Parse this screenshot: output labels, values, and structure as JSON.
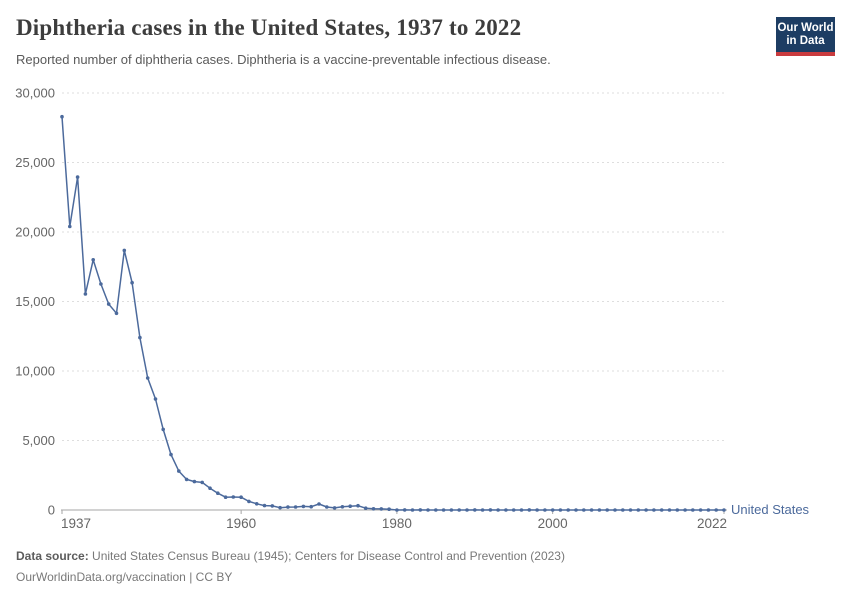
{
  "header": {
    "title": "Diphtheria cases in the United States, 1937 to 2022",
    "subtitle": "Reported number of diphtheria cases. Diphtheria is a vaccine-preventable infectious disease.",
    "logo": {
      "line1": "Our World",
      "line2": "in Data",
      "bg_color": "#1d3d63",
      "accent_color": "#c93b3e"
    }
  },
  "chart_data": {
    "type": "line",
    "title": "Diphtheria cases in the United States, 1937 to 2022",
    "xlabel": "",
    "ylabel": "",
    "xlim": [
      1937,
      2022
    ],
    "ylim": [
      0,
      30000
    ],
    "x_ticks": [
      1937,
      1960,
      1980,
      2000,
      2022
    ],
    "x_tick_labels": [
      "1937",
      "1960",
      "1980",
      "2000",
      "2022"
    ],
    "y_ticks": [
      0,
      5000,
      10000,
      15000,
      20000,
      25000,
      30000
    ],
    "y_tick_labels": [
      "0",
      "5,000",
      "10,000",
      "15,000",
      "20,000",
      "25,000",
      "30,000"
    ],
    "grid": "horizontal-dashed",
    "legend_position": "end-of-line",
    "end_label": "United States",
    "axis_color": "#a5a5a5",
    "grid_color": "#dedede",
    "series": [
      {
        "name": "United States",
        "color": "#4C6A9C",
        "x": [
          1937,
          1938,
          1939,
          1940,
          1941,
          1942,
          1943,
          1944,
          1945,
          1946,
          1947,
          1948,
          1949,
          1950,
          1951,
          1952,
          1953,
          1954,
          1955,
          1956,
          1957,
          1958,
          1959,
          1960,
          1961,
          1962,
          1963,
          1964,
          1965,
          1966,
          1967,
          1968,
          1969,
          1970,
          1971,
          1972,
          1973,
          1974,
          1975,
          1976,
          1977,
          1978,
          1979,
          1980,
          1981,
          1982,
          1983,
          1984,
          1985,
          1986,
          1987,
          1988,
          1989,
          1990,
          1991,
          1992,
          1993,
          1994,
          1995,
          1996,
          1997,
          1998,
          1999,
          2000,
          2001,
          2002,
          2003,
          2004,
          2005,
          2006,
          2007,
          2008,
          2009,
          2010,
          2011,
          2012,
          2013,
          2014,
          2015,
          2016,
          2017,
          2018,
          2019,
          2020,
          2021,
          2022
        ],
        "values": [
          28295,
          20394,
          23948,
          15536,
          18000,
          16260,
          14811,
          14150,
          18675,
          16354,
          12400,
          9493,
          7989,
          5796,
          3983,
          2800,
          2200,
          2041,
          1984,
          1568,
          1211,
          918,
          934,
          918,
          617,
          444,
          314,
          293,
          164,
          209,
          219,
          260,
          241,
          435,
          215,
          152,
          228,
          272,
          307,
          128,
          84,
          76,
          59,
          3,
          5,
          2,
          5,
          1,
          3,
          0,
          3,
          2,
          3,
          4,
          2,
          4,
          0,
          2,
          0,
          2,
          4,
          1,
          1,
          1,
          2,
          1,
          1,
          0,
          0,
          0,
          0,
          0,
          0,
          0,
          0,
          1,
          0,
          1,
          0,
          0,
          0,
          1,
          2,
          1,
          0,
          1
        ]
      }
    ]
  },
  "footer": {
    "datasource_label": "Data source:",
    "datasource_text": " United States Census Bureau (1945); Centers for Disease Control and Prevention (2023)",
    "link": "OurWorldinData.org/vaccination",
    "separator": " | ",
    "license": "CC BY"
  }
}
